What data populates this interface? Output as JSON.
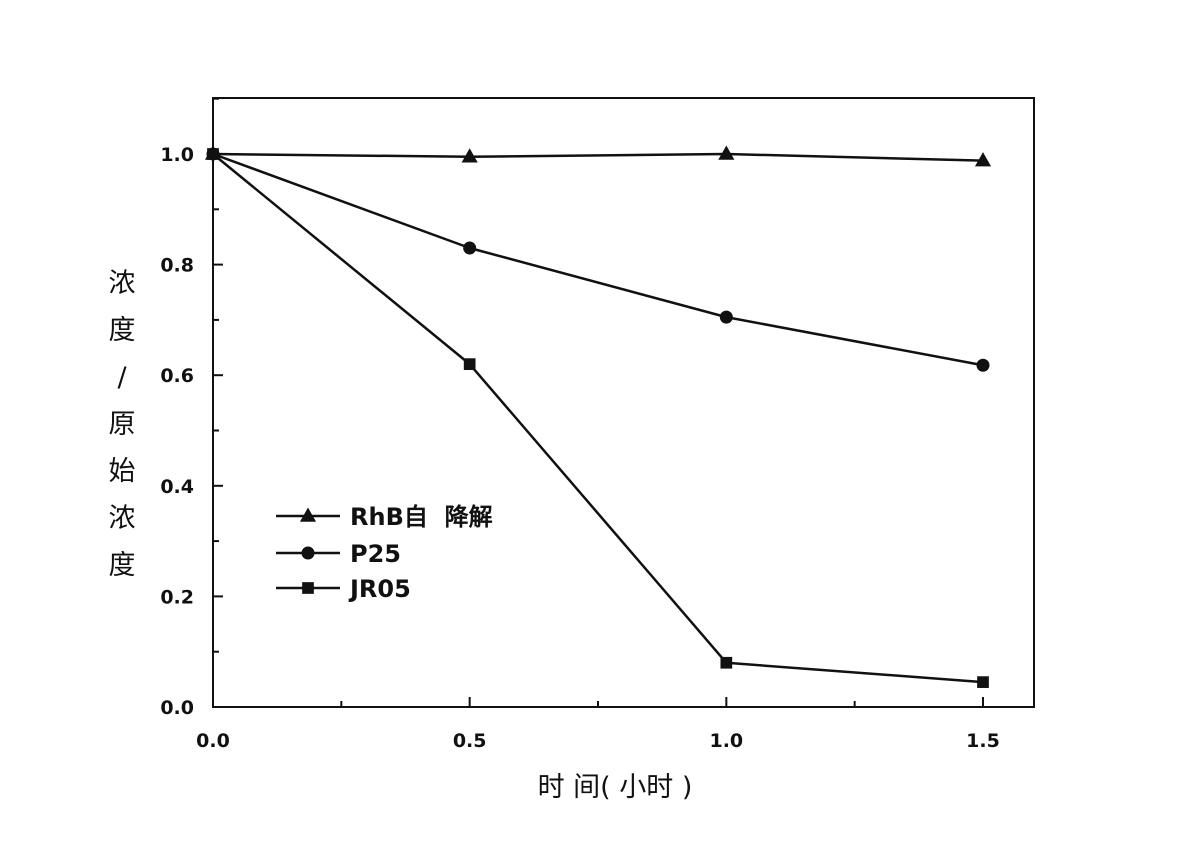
{
  "chart_data": {
    "type": "line",
    "xlabel": "时 间( 小时 )",
    "ylabel": "浓度/原始浓度",
    "xlim": [
      0,
      1.6
    ],
    "ylim": [
      0,
      1.1
    ],
    "x_ticks": [
      "0.0",
      "0.5",
      "1.0",
      "1.5"
    ],
    "y_ticks": [
      "0.0",
      "0.2",
      "0.4",
      "0.6",
      "0.8",
      "1.0"
    ],
    "grid": false,
    "legend_position": "bottom-left",
    "series": [
      {
        "name": "RhB自  降解",
        "marker": "triangle",
        "x": [
          0,
          0.5,
          1.0,
          1.5
        ],
        "y": [
          1.0,
          0.995,
          1.0,
          0.988
        ]
      },
      {
        "name": "P25",
        "marker": "circle",
        "x": [
          0,
          0.5,
          1.0,
          1.5
        ],
        "y": [
          1.0,
          0.83,
          0.705,
          0.618
        ]
      },
      {
        "name": "JR05",
        "marker": "square",
        "x": [
          0,
          0.5,
          1.0,
          1.5
        ],
        "y": [
          1.0,
          0.62,
          0.08,
          0.045
        ]
      }
    ]
  }
}
